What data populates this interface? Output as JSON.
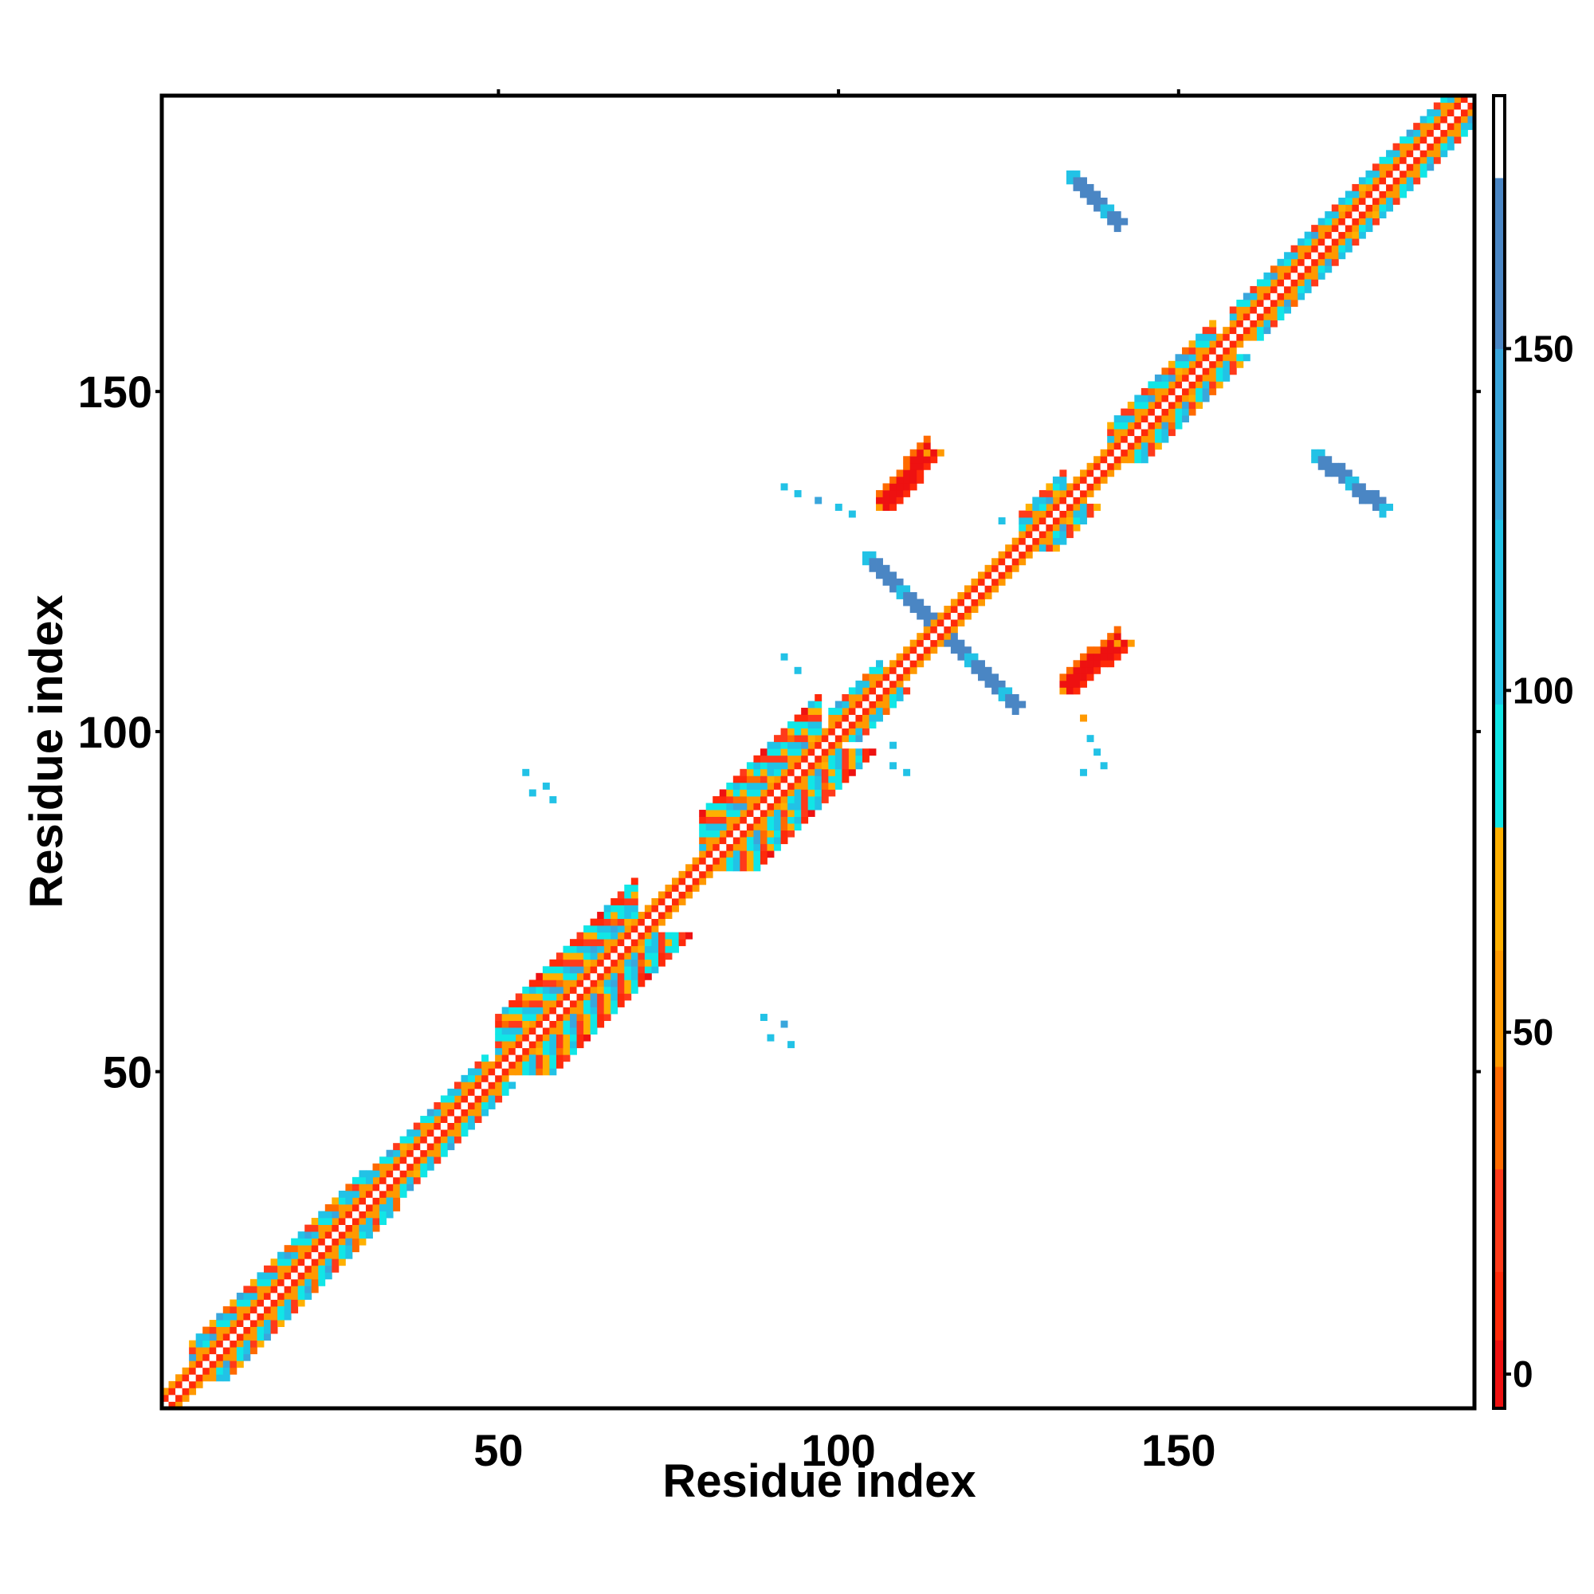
{
  "chart_data": {
    "type": "heatmap",
    "title": "",
    "xlabel": "Residue index",
    "ylabel": "Residue index",
    "xlim": [
      1,
      193
    ],
    "ylim": [
      1,
      193
    ],
    "xticks": [
      50,
      100,
      150
    ],
    "yticks": [
      50,
      100,
      150
    ],
    "grid": false,
    "colorbar": {
      "range": [
        -5,
        187
      ],
      "ticks": [
        0,
        50,
        100,
        150
      ],
      "stops": [
        {
          "from": -5,
          "to": 5,
          "color": "#ee1111"
        },
        {
          "from": 5,
          "to": 15,
          "color": "#ff2a0a"
        },
        {
          "from": 15,
          "to": 30,
          "color": "#ff3a1a"
        },
        {
          "from": 30,
          "to": 45,
          "color": "#ff6a00"
        },
        {
          "from": 45,
          "to": 62,
          "color": "#ff9900"
        },
        {
          "from": 62,
          "to": 80,
          "color": "#ffb000"
        },
        {
          "from": 80,
          "to": 98,
          "color": "#11e6e6"
        },
        {
          "from": 98,
          "to": 125,
          "color": "#22c2e6"
        },
        {
          "from": 125,
          "to": 150,
          "color": "#3aa6dc"
        },
        {
          "from": 150,
          "to": 175,
          "color": "#4a86c4"
        },
        {
          "from": 175,
          "to": 187,
          "color": "#ffffff"
        }
      ]
    },
    "diagonal": {
      "start": 1,
      "end": 193
    },
    "bands": [
      {
        "start": 5,
        "end": 30,
        "width": 5
      },
      {
        "start": 30,
        "end": 48,
        "width": 4
      },
      {
        "start": 50,
        "end": 70,
        "width": 8
      },
      {
        "start": 80,
        "end": 97,
        "width": 8
      },
      {
        "start": 99,
        "end": 106,
        "width": 4
      },
      {
        "start": 127,
        "end": 133,
        "width": 5
      },
      {
        "start": 140,
        "end": 155,
        "width": 5
      },
      {
        "start": 158,
        "end": 190,
        "width": 4
      }
    ],
    "antidiagonal_strands": [
      {
        "x0": 104,
        "y0": 126,
        "x1": 126,
        "y1": 104,
        "value": 160
      },
      {
        "x0": 134,
        "y0": 182,
        "x1": 141,
        "y1": 175,
        "value": 160
      },
      {
        "x0": 170,
        "y0": 141,
        "x1": 180,
        "y1": 133,
        "value": 160
      }
    ],
    "parallel_patches": [
      {
        "x0": 106,
        "y0": 133,
        "x1": 113,
        "y1": 141,
        "value": 3
      },
      {
        "x0": 133,
        "y0": 106,
        "x1": 141,
        "y1": 113,
        "value": 3
      }
    ],
    "scatter_points": [
      {
        "x": 92,
        "y": 136,
        "value": 115
      },
      {
        "x": 94,
        "y": 135,
        "value": 115
      },
      {
        "x": 97,
        "y": 134,
        "value": 140
      },
      {
        "x": 100,
        "y": 133,
        "value": 115
      },
      {
        "x": 102,
        "y": 132,
        "value": 115
      },
      {
        "x": 92,
        "y": 111,
        "value": 115
      },
      {
        "x": 94,
        "y": 109,
        "value": 115
      },
      {
        "x": 54,
        "y": 94,
        "value": 115
      },
      {
        "x": 57,
        "y": 92,
        "value": 115
      },
      {
        "x": 55,
        "y": 91,
        "value": 115
      },
      {
        "x": 58,
        "y": 90,
        "value": 115
      },
      {
        "x": 89,
        "y": 58,
        "value": 115
      },
      {
        "x": 92,
        "y": 57,
        "value": 140
      },
      {
        "x": 90,
        "y": 55,
        "value": 115
      },
      {
        "x": 93,
        "y": 54,
        "value": 115
      },
      {
        "x": 108,
        "y": 98,
        "value": 115
      },
      {
        "x": 108,
        "y": 95,
        "value": 115
      },
      {
        "x": 110,
        "y": 94,
        "value": 115
      },
      {
        "x": 136,
        "y": 102,
        "value": 55
      },
      {
        "x": 137,
        "y": 99,
        "value": 115
      },
      {
        "x": 138,
        "y": 97,
        "value": 115
      },
      {
        "x": 139,
        "y": 95,
        "value": 115
      },
      {
        "x": 136,
        "y": 94,
        "value": 115
      },
      {
        "x": 128,
        "y": 128,
        "value": 95
      },
      {
        "x": 124,
        "y": 131,
        "value": 115
      }
    ]
  }
}
